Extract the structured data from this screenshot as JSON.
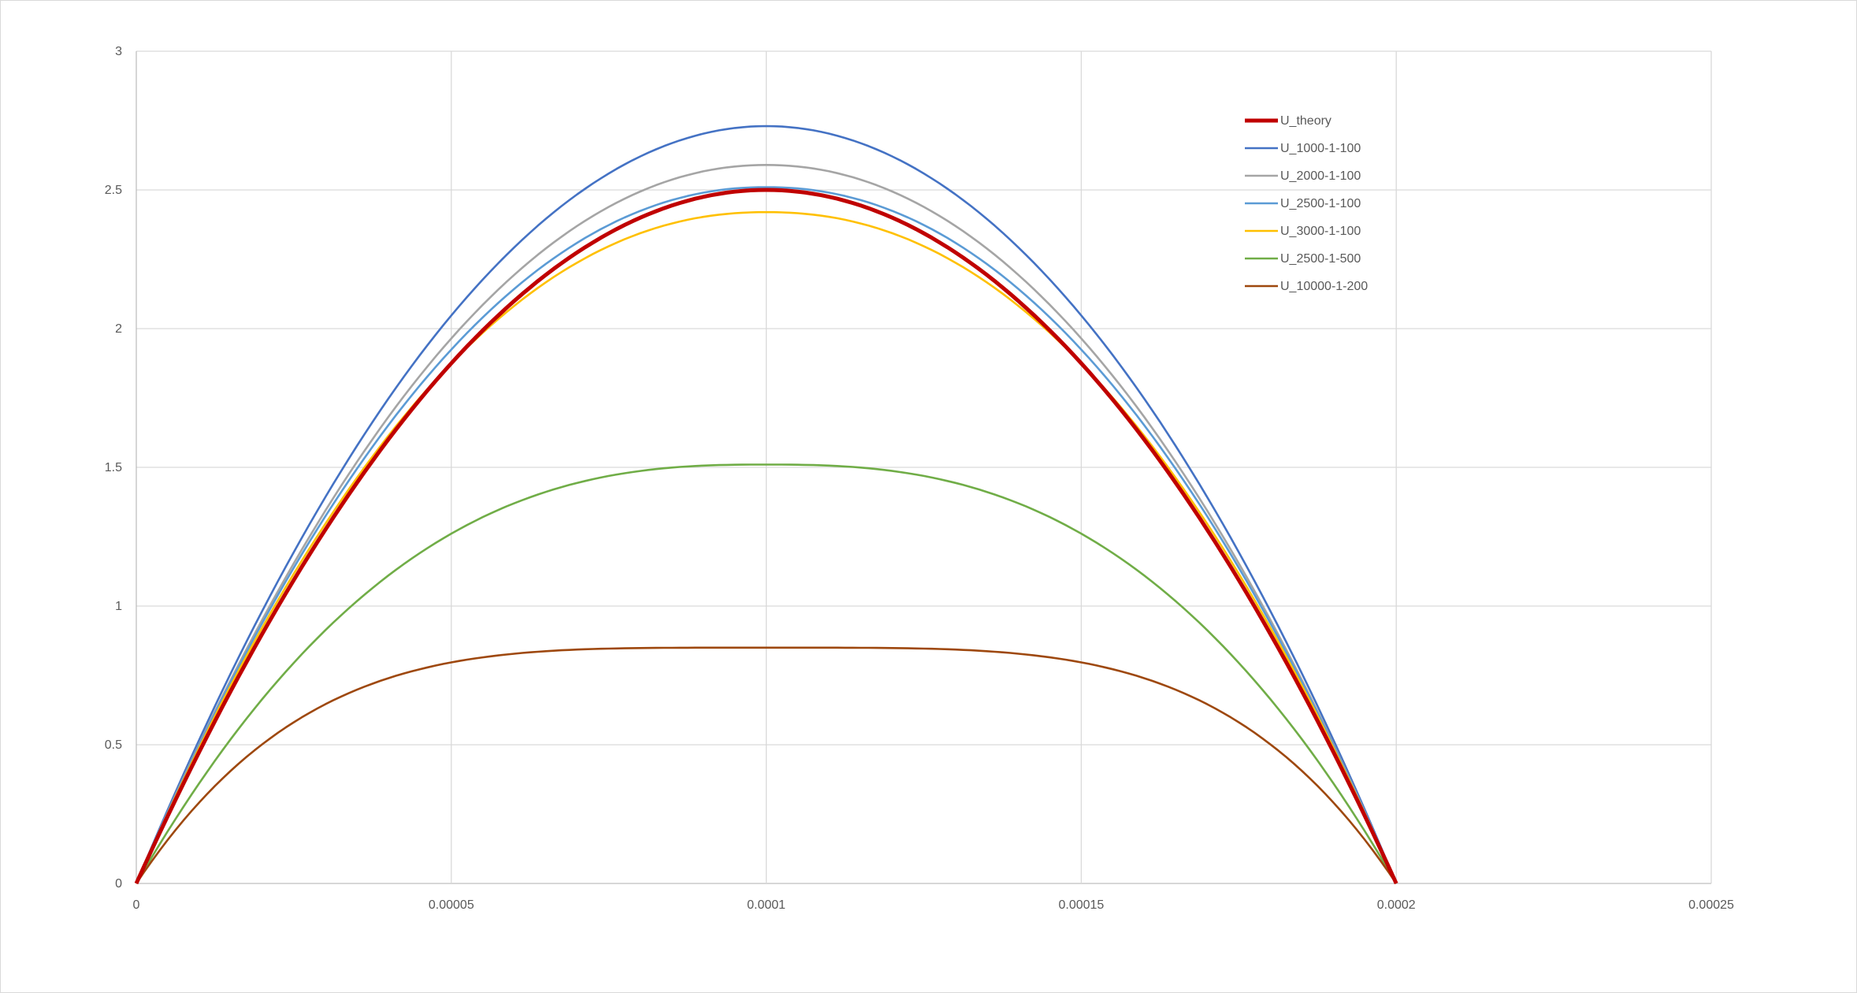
{
  "chart_data": {
    "type": "line",
    "title": "",
    "xlabel": "",
    "ylabel": "",
    "xlim": [
      0,
      0.00025
    ],
    "ylim": [
      0,
      3
    ],
    "x_ticks": [
      "0",
      "0.00005",
      "0.0001",
      "0.00015",
      "0.0002",
      "0.00025"
    ],
    "y_ticks": [
      "0",
      "0.5",
      "1",
      "1.5",
      "2",
      "2.5",
      "3"
    ],
    "grid": true,
    "legend_position": "top-right",
    "series": [
      {
        "name": "U_theory",
        "color": "#C00000",
        "shape": "parabola",
        "x": [
          0,
          2e-05,
          4e-05,
          6e-05,
          8e-05,
          0.0001,
          0.00012,
          0.00014,
          0.00016,
          0.00018,
          0.0002
        ],
        "values": [
          0,
          0.9,
          1.6,
          2.1,
          2.4,
          2.5,
          2.4,
          2.1,
          1.6,
          0.9,
          0
        ]
      },
      {
        "name": "U_1000-1-100",
        "color": "#4472C4",
        "shape": "power",
        "exponent": 2.0,
        "x": [
          0,
          2e-05,
          4e-05,
          6e-05,
          8e-05,
          0.0001,
          0.00012,
          0.00014,
          0.00016,
          0.00018,
          0.0002
        ],
        "values": [
          0,
          0.98,
          1.75,
          2.29,
          2.62,
          2.73,
          2.62,
          2.29,
          1.75,
          0.98,
          0
        ]
      },
      {
        "name": "U_2000-1-100",
        "color": "#A5A5A5",
        "shape": "power",
        "exponent": 2.05,
        "x": [
          0,
          2e-05,
          4e-05,
          6e-05,
          8e-05,
          0.0001,
          0.00012,
          0.00014,
          0.00016,
          0.00018,
          0.0002
        ],
        "values": [
          0,
          0.94,
          1.67,
          2.18,
          2.49,
          2.59,
          2.49,
          2.18,
          1.67,
          0.94,
          0
        ]
      },
      {
        "name": "U_2500-1-100",
        "color": "#5B9BD5",
        "shape": "power",
        "exponent": 2.1,
        "x": [
          0,
          2e-05,
          4e-05,
          6e-05,
          8e-05,
          0.0001,
          0.00012,
          0.00014,
          0.00016,
          0.00018,
          0.0002
        ],
        "values": [
          0,
          0.92,
          1.63,
          2.12,
          2.42,
          2.51,
          2.42,
          2.12,
          1.63,
          0.92,
          0
        ]
      },
      {
        "name": "U_3000-1-100",
        "color": "#FFC000",
        "shape": "power",
        "exponent": 2.15,
        "x": [
          0,
          2e-05,
          4e-05,
          6e-05,
          8e-05,
          0.0001,
          0.00012,
          0.00014,
          0.00016,
          0.00018,
          0.0002
        ],
        "values": [
          0,
          0.89,
          1.58,
          2.05,
          2.34,
          2.42,
          2.34,
          2.05,
          1.58,
          0.89,
          0
        ]
      },
      {
        "name": "U_2500-1-500",
        "color": "#70AD47",
        "shape": "power",
        "exponent": 2.6,
        "x": [
          0,
          2e-05,
          4e-05,
          6e-05,
          8e-05,
          0.0001,
          0.00012,
          0.00014,
          0.00016,
          0.00018,
          0.0002
        ],
        "values": [
          0,
          0.63,
          1.11,
          1.38,
          1.49,
          1.51,
          1.49,
          1.38,
          1.11,
          0.63,
          0
        ]
      },
      {
        "name": "U_10000-1-200",
        "color": "#9E480E",
        "shape": "power",
        "exponent": 4.0,
        "x": [
          0,
          2e-05,
          4e-05,
          6e-05,
          8e-05,
          0.0001,
          0.00012,
          0.00014,
          0.00016,
          0.00018,
          0.0002
        ],
        "values": [
          0,
          0.48,
          0.74,
          0.83,
          0.85,
          0.85,
          0.85,
          0.83,
          0.74,
          0.48,
          0
        ]
      }
    ]
  }
}
